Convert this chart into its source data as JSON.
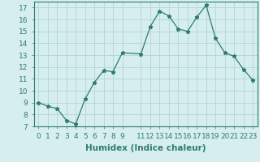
{
  "x": [
    0,
    1,
    2,
    3,
    4,
    5,
    6,
    7,
    8,
    9,
    11,
    12,
    13,
    14,
    15,
    16,
    17,
    18,
    19,
    20,
    21,
    22,
    23
  ],
  "y": [
    9,
    8.7,
    8.5,
    7.5,
    7.2,
    9.3,
    10.7,
    11.7,
    11.6,
    13.2,
    13.1,
    15.4,
    16.7,
    16.3,
    15.2,
    15.0,
    16.2,
    17.2,
    14.4,
    13.2,
    12.9,
    11.8,
    10.9
  ],
  "xlabel": "Humidex (Indice chaleur)",
  "line_color": "#2e7d6e",
  "marker": "*",
  "bg_color": "#d6eeee",
  "grid_color": "#b8d8d8",
  "xlim": [
    -0.5,
    23.5
  ],
  "ylim": [
    7,
    17.5
  ],
  "yticks": [
    7,
    8,
    9,
    10,
    11,
    12,
    13,
    14,
    15,
    16,
    17
  ],
  "xticks": [
    0,
    1,
    2,
    3,
    4,
    5,
    6,
    7,
    8,
    9,
    11,
    12,
    13,
    14,
    15,
    16,
    17,
    18,
    19,
    20,
    21,
    22,
    23
  ],
  "xtick_labels": [
    "0",
    "1",
    "2",
    "3",
    "4",
    "5",
    "6",
    "7",
    "8",
    "9",
    "11",
    "12",
    "13",
    "14",
    "15",
    "16",
    "17",
    "18",
    "19",
    "20",
    "21",
    "22",
    "23"
  ],
  "label_fontsize": 7.5,
  "tick_fontsize": 6.5
}
